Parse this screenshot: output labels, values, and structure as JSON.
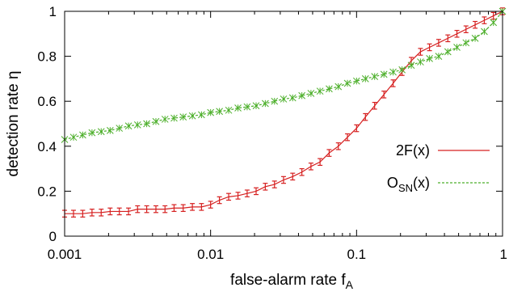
{
  "chart_data": {
    "type": "line",
    "xlabel": "false-alarm rate",
    "xlabel_sub": "A",
    "xlabel_var": "f",
    "ylabel": "detection rate η",
    "xscale": "log",
    "xlim": [
      0.001,
      1
    ],
    "ylim": [
      0,
      1
    ],
    "x_ticks": [
      {
        "value": 0.001,
        "label": "0.001"
      },
      {
        "value": 0.01,
        "label": "0.01"
      },
      {
        "value": 0.1,
        "label": "0.1"
      },
      {
        "value": 1,
        "label": "1"
      }
    ],
    "y_ticks": [
      {
        "value": 0,
        "label": "0"
      },
      {
        "value": 0.2,
        "label": "0.2"
      },
      {
        "value": 0.4,
        "label": "0.4"
      },
      {
        "value": 0.6,
        "label": "0.6"
      },
      {
        "value": 0.8,
        "label": "0.8"
      },
      {
        "value": 1,
        "label": "1"
      }
    ],
    "legend_position": "right",
    "series": [
      {
        "name": "2F(x)",
        "color": "#d62020",
        "line": "solid",
        "marker": "errorbar",
        "x": [
          0.001,
          0.00115,
          0.00133,
          0.00154,
          0.00178,
          0.00205,
          0.00237,
          0.00274,
          0.00316,
          0.00365,
          0.00422,
          0.00487,
          0.00562,
          0.00649,
          0.0075,
          0.00866,
          0.01,
          0.0115,
          0.0133,
          0.0154,
          0.0178,
          0.0205,
          0.0237,
          0.0274,
          0.0316,
          0.0365,
          0.0422,
          0.0487,
          0.0562,
          0.0649,
          0.075,
          0.0866,
          0.1,
          0.115,
          0.133,
          0.154,
          0.178,
          0.205,
          0.237,
          0.274,
          0.316,
          0.365,
          0.422,
          0.487,
          0.562,
          0.649,
          0.75,
          0.866,
          1.0
        ],
        "values": [
          0.1,
          0.1,
          0.1,
          0.105,
          0.105,
          0.11,
          0.11,
          0.11,
          0.12,
          0.12,
          0.12,
          0.12,
          0.125,
          0.125,
          0.13,
          0.13,
          0.14,
          0.16,
          0.175,
          0.18,
          0.19,
          0.2,
          0.22,
          0.23,
          0.25,
          0.265,
          0.285,
          0.31,
          0.33,
          0.37,
          0.4,
          0.44,
          0.48,
          0.53,
          0.58,
          0.63,
          0.68,
          0.73,
          0.78,
          0.82,
          0.84,
          0.86,
          0.88,
          0.9,
          0.92,
          0.94,
          0.96,
          0.98,
          1.0
        ],
        "error": 0.015
      },
      {
        "name": "O",
        "name_sub": "SN",
        "name_suffix": "(x)",
        "color": "#4caf2a",
        "line": "dashed",
        "marker": "star",
        "x": [
          0.001,
          0.00115,
          0.00133,
          0.00154,
          0.00178,
          0.00205,
          0.00237,
          0.00274,
          0.00316,
          0.00365,
          0.00422,
          0.00487,
          0.00562,
          0.00649,
          0.0075,
          0.00866,
          0.01,
          0.0115,
          0.0133,
          0.0154,
          0.0178,
          0.0205,
          0.0237,
          0.0274,
          0.0316,
          0.0365,
          0.0422,
          0.0487,
          0.0562,
          0.0649,
          0.075,
          0.0866,
          0.1,
          0.115,
          0.133,
          0.154,
          0.178,
          0.205,
          0.237,
          0.274,
          0.316,
          0.365,
          0.422,
          0.487,
          0.562,
          0.649,
          0.75,
          0.866,
          1.0
        ],
        "values": [
          0.43,
          0.44,
          0.45,
          0.46,
          0.465,
          0.47,
          0.48,
          0.49,
          0.495,
          0.5,
          0.51,
          0.52,
          0.525,
          0.53,
          0.535,
          0.54,
          0.55,
          0.555,
          0.56,
          0.57,
          0.575,
          0.58,
          0.59,
          0.6,
          0.61,
          0.615,
          0.625,
          0.635,
          0.645,
          0.655,
          0.665,
          0.68,
          0.69,
          0.7,
          0.71,
          0.72,
          0.73,
          0.74,
          0.76,
          0.775,
          0.79,
          0.8,
          0.82,
          0.84,
          0.86,
          0.88,
          0.91,
          0.95,
          1.0
        ],
        "error": 0.015
      }
    ]
  }
}
